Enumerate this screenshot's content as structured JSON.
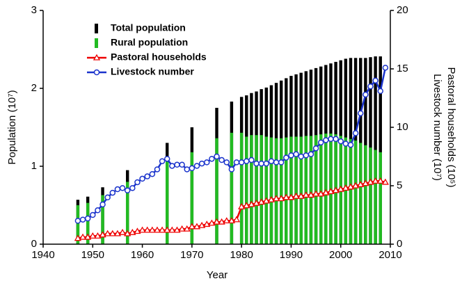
{
  "chart_data": {
    "type": "bar-line",
    "xlabel": "Year",
    "ylabel": "Population (10⁷)",
    "y2label": [
      "Livestock number (10⁷)",
      "Pastoral households (10⁵)"
    ],
    "xlim": [
      1940,
      2010
    ],
    "xticks": [
      1940,
      1950,
      1960,
      1970,
      1980,
      1990,
      2000,
      2010
    ],
    "ylim": [
      0,
      3
    ],
    "yticks": [
      0,
      1,
      2,
      3
    ],
    "y2lim": [
      0,
      20
    ],
    "y2ticks": [
      0,
      5,
      10,
      15,
      20
    ],
    "legend": "upper left",
    "series": [
      {
        "name": "Total population",
        "kind": "bar",
        "color": "#000000",
        "x": [
          1947,
          1949,
          1952,
          1957,
          1965,
          1970,
          1975,
          1978,
          1980,
          1981,
          1982,
          1983,
          1984,
          1985,
          1986,
          1987,
          1988,
          1989,
          1990,
          1991,
          1992,
          1993,
          1994,
          1995,
          1996,
          1997,
          1998,
          1999,
          2000,
          2001,
          2002,
          2003,
          2004,
          2005,
          2006,
          2007,
          2008
        ],
        "values": [
          0.57,
          0.61,
          0.73,
          0.95,
          1.3,
          1.5,
          1.75,
          1.83,
          1.89,
          1.91,
          1.94,
          1.96,
          1.99,
          2.01,
          2.04,
          2.07,
          2.1,
          2.13,
          2.16,
          2.18,
          2.2,
          2.22,
          2.24,
          2.26,
          2.28,
          2.3,
          2.32,
          2.34,
          2.36,
          2.38,
          2.39,
          2.39,
          2.39,
          2.39,
          2.4,
          2.41,
          2.41
        ]
      },
      {
        "name": "Rural population",
        "kind": "bar",
        "color": "#22bb22",
        "x": [
          1947,
          1949,
          1952,
          1957,
          1965,
          1970,
          1975,
          1978,
          1980,
          1981,
          1982,
          1983,
          1984,
          1985,
          1986,
          1987,
          1988,
          1989,
          1990,
          1991,
          1992,
          1993,
          1994,
          1995,
          1996,
          1997,
          1998,
          1999,
          2000,
          2001,
          2002,
          2003,
          2004,
          2005,
          2006,
          2007,
          2008
        ],
        "values": [
          0.5,
          0.53,
          0.63,
          0.8,
          1.1,
          1.18,
          1.36,
          1.43,
          1.43,
          1.38,
          1.4,
          1.4,
          1.4,
          1.38,
          1.37,
          1.36,
          1.36,
          1.37,
          1.38,
          1.38,
          1.38,
          1.39,
          1.39,
          1.4,
          1.41,
          1.42,
          1.42,
          1.41,
          1.39,
          1.37,
          1.35,
          1.33,
          1.3,
          1.27,
          1.24,
          1.21,
          1.18
        ]
      },
      {
        "name": "Pastoral households",
        "kind": "line",
        "marker": "triangle",
        "color": "#ee0000",
        "axis": "y2",
        "x": [
          1947,
          1948,
          1949,
          1950,
          1951,
          1952,
          1953,
          1954,
          1955,
          1956,
          1957,
          1958,
          1959,
          1960,
          1961,
          1962,
          1963,
          1964,
          1965,
          1966,
          1967,
          1968,
          1969,
          1970,
          1971,
          1972,
          1973,
          1974,
          1975,
          1976,
          1977,
          1978,
          1979,
          1980,
          1981,
          1982,
          1983,
          1984,
          1985,
          1986,
          1987,
          1988,
          1989,
          1990,
          1991,
          1992,
          1993,
          1994,
          1995,
          1996,
          1997,
          1998,
          1999,
          2000,
          2001,
          2002,
          2003,
          2004,
          2005,
          2006,
          2007,
          2008,
          2009
        ],
        "values": [
          0.5,
          0.6,
          0.6,
          0.7,
          0.7,
          0.8,
          0.9,
          0.9,
          0.9,
          1.0,
          0.9,
          1.0,
          1.1,
          1.2,
          1.2,
          1.2,
          1.2,
          1.2,
          1.2,
          1.2,
          1.2,
          1.3,
          1.3,
          1.5,
          1.5,
          1.6,
          1.7,
          1.8,
          1.9,
          1.9,
          2.0,
          2.0,
          2.1,
          3.2,
          3.3,
          3.4,
          3.5,
          3.6,
          3.7,
          3.8,
          3.9,
          3.9,
          4.0,
          4.0,
          4.1,
          4.1,
          4.2,
          4.2,
          4.3,
          4.3,
          4.4,
          4.5,
          4.6,
          4.7,
          4.8,
          4.9,
          5.0,
          5.1,
          5.2,
          5.3,
          5.4,
          5.4,
          5.3
        ]
      },
      {
        "name": "Livestock number",
        "kind": "line",
        "marker": "circle",
        "color": "#1a33cc",
        "axis": "y2",
        "x": [
          1947,
          1948,
          1949,
          1950,
          1951,
          1952,
          1953,
          1954,
          1955,
          1956,
          1957,
          1958,
          1959,
          1960,
          1961,
          1962,
          1963,
          1964,
          1965,
          1966,
          1967,
          1968,
          1969,
          1970,
          1971,
          1972,
          1973,
          1974,
          1975,
          1976,
          1977,
          1978,
          1979,
          1980,
          1981,
          1982,
          1983,
          1984,
          1985,
          1986,
          1987,
          1988,
          1989,
          1990,
          1991,
          1992,
          1993,
          1994,
          1995,
          1996,
          1997,
          1998,
          1999,
          2000,
          2001,
          2002,
          2003,
          2004,
          2005,
          2006,
          2007,
          2008,
          2009
        ],
        "values": [
          2.0,
          2.1,
          2.2,
          2.5,
          2.9,
          3.4,
          4.0,
          4.4,
          4.7,
          4.8,
          4.6,
          4.8,
          5.3,
          5.6,
          5.8,
          6.0,
          6.4,
          7.1,
          7.3,
          6.7,
          6.8,
          6.8,
          6.4,
          6.5,
          6.7,
          6.9,
          7.0,
          7.3,
          7.5,
          7.2,
          7.0,
          6.4,
          7.0,
          7.0,
          7.1,
          7.2,
          6.9,
          6.9,
          6.9,
          7.1,
          7.0,
          7.0,
          7.4,
          7.6,
          7.7,
          7.5,
          7.6,
          7.7,
          8.2,
          8.7,
          8.9,
          9.0,
          9.0,
          8.8,
          8.6,
          8.5,
          9.5,
          11.2,
          12.8,
          13.5,
          14.0,
          13.1,
          15.1
        ]
      }
    ]
  }
}
